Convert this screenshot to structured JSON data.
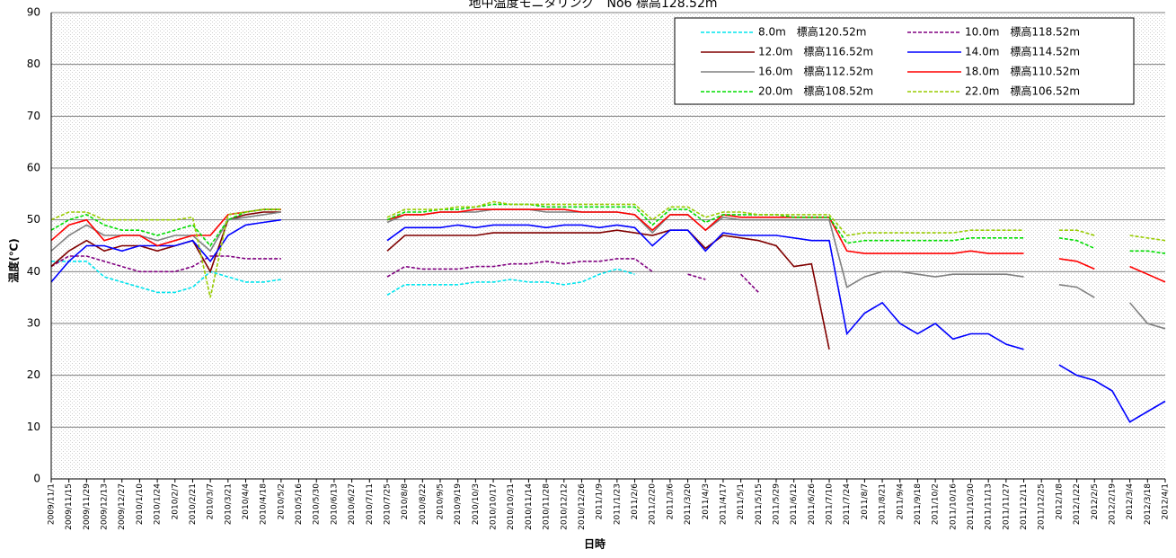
{
  "chart_data": {
    "type": "line",
    "title": "地中温度モニタリング　No6 標高128.52m",
    "x_label": "日時",
    "y_label": "温度(℃)",
    "xlim": [
      "2009/11/1",
      "2012/4/1"
    ],
    "ylim": [
      0,
      90
    ],
    "yticks": [
      0,
      10,
      20,
      30,
      40,
      50,
      60,
      70,
      80,
      90
    ],
    "grid": true,
    "legend": "top-right",
    "xticks": [
      "2009/11/1",
      "2009/11/15",
      "2009/11/29",
      "2009/12/13",
      "2009/12/27",
      "2010/1/10",
      "2010/1/24",
      "2010/2/7",
      "2010/2/21",
      "2010/3/7",
      "2010/3/21",
      "2010/4/4",
      "2010/4/18",
      "2010/5/2",
      "2010/5/16",
      "2010/5/30",
      "2010/6/13",
      "2010/6/27",
      "2010/7/11",
      "2010/7/25",
      "2010/8/8",
      "2010/8/22",
      "2010/9/5",
      "2010/9/19",
      "2010/10/3",
      "2010/10/17",
      "2010/10/31",
      "2010/11/14",
      "2010/11/28",
      "2010/12/12",
      "2010/12/26",
      "2011/1/9",
      "2011/1/23",
      "2011/2/6",
      "2011/2/20",
      "2011/3/6",
      "2011/3/20",
      "2011/4/3",
      "2011/4/17",
      "2011/5/1",
      "2011/5/15",
      "2011/5/29",
      "2011/6/12",
      "2011/6/26",
      "2011/7/10",
      "2011/7/24",
      "2011/8/7",
      "2011/8/21",
      "2011/9/4",
      "2011/9/18",
      "2011/10/2",
      "2011/10/16",
      "2011/10/30",
      "2011/11/13",
      "2011/11/27",
      "2011/12/11",
      "2011/12/25",
      "2012/1/8",
      "2012/1/22",
      "2012/2/5",
      "2012/2/19",
      "2012/3/4",
      "2012/3/18",
      "2012/4/1"
    ],
    "x": [
      "2009/11/1",
      "2009/11/15",
      "2009/11/29",
      "2009/12/13",
      "2009/12/27",
      "2010/1/10",
      "2010/1/24",
      "2010/2/7",
      "2010/2/21",
      "2010/3/7",
      "2010/3/21",
      "2010/4/4",
      "2010/4/18",
      "2010/5/2",
      "2010/5/16",
      "2010/5/30",
      "2010/6/13",
      "2010/6/27",
      "2010/7/11",
      "2010/7/25",
      "2010/8/8",
      "2010/8/22",
      "2010/9/5",
      "2010/9/19",
      "2010/10/3",
      "2010/10/17",
      "2010/10/31",
      "2010/11/14",
      "2010/11/28",
      "2010/12/12",
      "2010/12/26",
      "2011/1/9",
      "2011/1/23",
      "2011/2/6",
      "2011/2/20",
      "2011/3/6",
      "2011/3/20",
      "2011/4/3",
      "2011/4/17",
      "2011/5/1",
      "2011/5/15",
      "2011/5/29",
      "2011/6/12",
      "2011/6/26",
      "2011/7/10",
      "2011/7/24",
      "2011/8/7",
      "2011/8/21",
      "2011/9/4",
      "2011/9/18",
      "2011/10/2",
      "2011/10/16",
      "2011/10/30",
      "2011/11/13",
      "2011/11/27",
      "2011/12/11",
      "2011/12/25",
      "2012/1/8",
      "2012/1/22",
      "2012/2/5",
      "2012/2/19",
      "2012/3/4",
      "2012/3/18",
      "2012/4/1"
    ],
    "series": [
      {
        "name": "8.0m　標高120.52m",
        "color": "#00e5ee",
        "dashed": true,
        "values": [
          42,
          42,
          42,
          39,
          38,
          37,
          36,
          36,
          37,
          40,
          39,
          38,
          38,
          38.5,
          null,
          null,
          null,
          null,
          null,
          35.5,
          37.5,
          37.5,
          37.5,
          37.5,
          38,
          38,
          38.5,
          38,
          38,
          37.5,
          38,
          39.5,
          40.5,
          39.5,
          null,
          null,
          null,
          null,
          null,
          null,
          null,
          null,
          null,
          null,
          null,
          null,
          null,
          null,
          null,
          null,
          null,
          null,
          null,
          null,
          null,
          null,
          null,
          null,
          null,
          null,
          null,
          null,
          null,
          null
        ]
      },
      {
        "name": "10.0m　標高118.52m",
        "color": "#800080",
        "dashed": true,
        "values": [
          41,
          43,
          43,
          42,
          41,
          40,
          40,
          40,
          41,
          43,
          43,
          42.5,
          42.5,
          42.5,
          null,
          null,
          null,
          null,
          null,
          39,
          41,
          40.5,
          40.5,
          40.5,
          41,
          41,
          41.5,
          41.5,
          42,
          41.5,
          42,
          42,
          42.5,
          42.5,
          40,
          null,
          39.5,
          38.5,
          null,
          39.5,
          36,
          null,
          null,
          null,
          null,
          null,
          null,
          null,
          null,
          null,
          null,
          null,
          null,
          null,
          null,
          null,
          null,
          null,
          null,
          null,
          null,
          null,
          null,
          null
        ]
      },
      {
        "name": "12.0m　標高116.52m",
        "color": "#800000",
        "dashed": false,
        "values": [
          41,
          44,
          46,
          44,
          45,
          45,
          44,
          45,
          46,
          40,
          50,
          51,
          51.5,
          51.5,
          null,
          null,
          null,
          null,
          null,
          44,
          47,
          47,
          47,
          47,
          47,
          47.5,
          47.5,
          47.5,
          47.5,
          47.5,
          47.5,
          47.5,
          48,
          47.5,
          47,
          48,
          48,
          44.5,
          47,
          46.5,
          46,
          45,
          41,
          41.5,
          25,
          null,
          null,
          null,
          null,
          null,
          null,
          null,
          null,
          null,
          null,
          null,
          null,
          null,
          null,
          null,
          null,
          null,
          null,
          null
        ]
      },
      {
        "name": "14.0m　標高114.52m",
        "color": "#0000ff",
        "dashed": false,
        "values": [
          38,
          42,
          45,
          45,
          44,
          45,
          45,
          45,
          46,
          42,
          47,
          49,
          49.5,
          50,
          null,
          null,
          null,
          null,
          null,
          46,
          48.5,
          48.5,
          48.5,
          49,
          48.5,
          49,
          49,
          49,
          48.5,
          49,
          49,
          48.5,
          49,
          48.5,
          45,
          48,
          48,
          44,
          47.5,
          47,
          47,
          47,
          46.5,
          46,
          46,
          28,
          32,
          34,
          30,
          28,
          30,
          27,
          28,
          28,
          26,
          25,
          null,
          22,
          20,
          19,
          17,
          11,
          13,
          15
        ]
      },
      {
        "name": "16.0m　標高112.52m",
        "color": "#808080",
        "dashed": false,
        "values": [
          44,
          47,
          49,
          47,
          47,
          47,
          46,
          47,
          47,
          44,
          50,
          50.5,
          51,
          51.5,
          null,
          null,
          null,
          null,
          null,
          49.5,
          51,
          51,
          51.5,
          51.5,
          51.5,
          52,
          52,
          52,
          51.5,
          51.5,
          51.5,
          51.5,
          51.5,
          51,
          47.5,
          51,
          51,
          48,
          50.5,
          50,
          50,
          50,
          50,
          50,
          50,
          37,
          39,
          40,
          40,
          39.5,
          39,
          39.5,
          39.5,
          39.5,
          39.5,
          39,
          null,
          37.5,
          37,
          35,
          null,
          34,
          30,
          29
        ]
      },
      {
        "name": "18.0m　標高110.52m",
        "color": "#ff0000",
        "dashed": false,
        "values": [
          46,
          49,
          50,
          46,
          47,
          47,
          45,
          46,
          47,
          47,
          51,
          51.5,
          52,
          52,
          null,
          null,
          null,
          null,
          null,
          50,
          51,
          51,
          51.5,
          51.5,
          52,
          52,
          52,
          52,
          52,
          52,
          51.5,
          51.5,
          51.5,
          51,
          48,
          51,
          51,
          48,
          51,
          50.5,
          50.5,
          50.5,
          50.5,
          50.5,
          50.5,
          44,
          43.5,
          43.5,
          43.5,
          43.5,
          43.5,
          43.5,
          44,
          43.5,
          43.5,
          43.5,
          null,
          42.5,
          42,
          40.5,
          null,
          41,
          39.5,
          38
        ]
      },
      {
        "name": "20.0m　標高108.52m",
        "color": "#00dd00",
        "dashed": true,
        "values": [
          48,
          50,
          51,
          49,
          48,
          48,
          47,
          48,
          49,
          45,
          50,
          51.5,
          52,
          52,
          null,
          null,
          null,
          null,
          null,
          50,
          51.5,
          51.5,
          52,
          52,
          52.5,
          53,
          53,
          53,
          52.5,
          52.5,
          52.5,
          52.5,
          52.5,
          52.5,
          49,
          52,
          52,
          49.5,
          51,
          51,
          51,
          51,
          50.5,
          50.5,
          50.5,
          45.5,
          46,
          46,
          46,
          46,
          46,
          46,
          46.5,
          46.5,
          46.5,
          46.5,
          null,
          46.5,
          46,
          44.5,
          null,
          44,
          44,
          43.5
        ]
      },
      {
        "name": "22.0m　標高106.52m",
        "color": "#99cc00",
        "dashed": true,
        "values": [
          50,
          51.5,
          51.5,
          50,
          50,
          50,
          50,
          50,
          50.5,
          35,
          51,
          51.5,
          52,
          52,
          null,
          null,
          null,
          null,
          null,
          50.5,
          52,
          52,
          52,
          52.5,
          52.5,
          53.5,
          53,
          53,
          53,
          53,
          53,
          53,
          53,
          53,
          50,
          52.5,
          52.5,
          50.5,
          51.5,
          51.5,
          51,
          51,
          51,
          51,
          51,
          47,
          47.5,
          47.5,
          47.5,
          47.5,
          47.5,
          47.5,
          48,
          48,
          48,
          48,
          null,
          48,
          48,
          47,
          null,
          47,
          46.5,
          46
        ]
      }
    ]
  }
}
